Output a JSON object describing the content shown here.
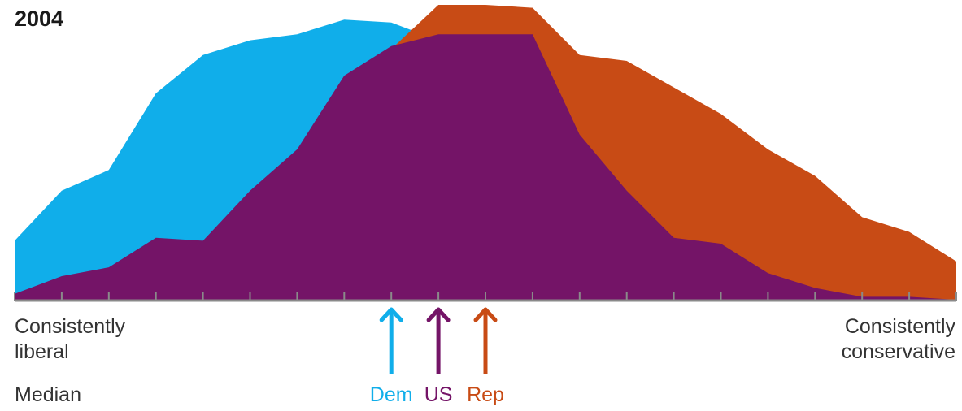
{
  "title": "2004",
  "left_label_lines": [
    "Consistently",
    "liberal"
  ],
  "right_label_lines": [
    "Consistently",
    "conservative"
  ],
  "median_label": "Median",
  "colors": {
    "dem": "#10AEEA",
    "rep": "#C84B15",
    "us": "#741467",
    "axis": "#8a8a8a"
  },
  "chart_data": {
    "type": "area",
    "title": "2004",
    "x": [
      1,
      2,
      3,
      4,
      5,
      6,
      7,
      8,
      9,
      10,
      11,
      12,
      13,
      14,
      15,
      16,
      17,
      18,
      19,
      20,
      21
    ],
    "ylim": [
      0,
      100
    ],
    "series": [
      {
        "name": "Dem",
        "values": [
          20,
          37,
          44,
          70,
          83,
          88,
          90,
          95,
          94,
          88,
          70,
          42,
          22,
          19,
          18,
          9,
          4,
          1,
          1,
          0,
          0
        ]
      },
      {
        "name": "Rep",
        "values": [
          0,
          0,
          0,
          0,
          0,
          0,
          0,
          0,
          85,
          100,
          100,
          99,
          83,
          81,
          72,
          63,
          51,
          42,
          28,
          23,
          13
        ]
      },
      {
        "name": "US",
        "values": [
          2,
          8,
          11,
          21,
          20,
          37,
          51,
          76,
          86,
          90,
          90,
          90,
          56,
          37,
          21,
          19,
          9,
          4,
          1,
          1,
          0
        ]
      }
    ],
    "medians": [
      {
        "name": "Dem",
        "x": 9
      },
      {
        "name": "US",
        "x": 10
      },
      {
        "name": "Rep",
        "x": 11
      }
    ],
    "xlabel_left": "Consistently liberal",
    "xlabel_right": "Consistently conservative",
    "grid": false
  }
}
